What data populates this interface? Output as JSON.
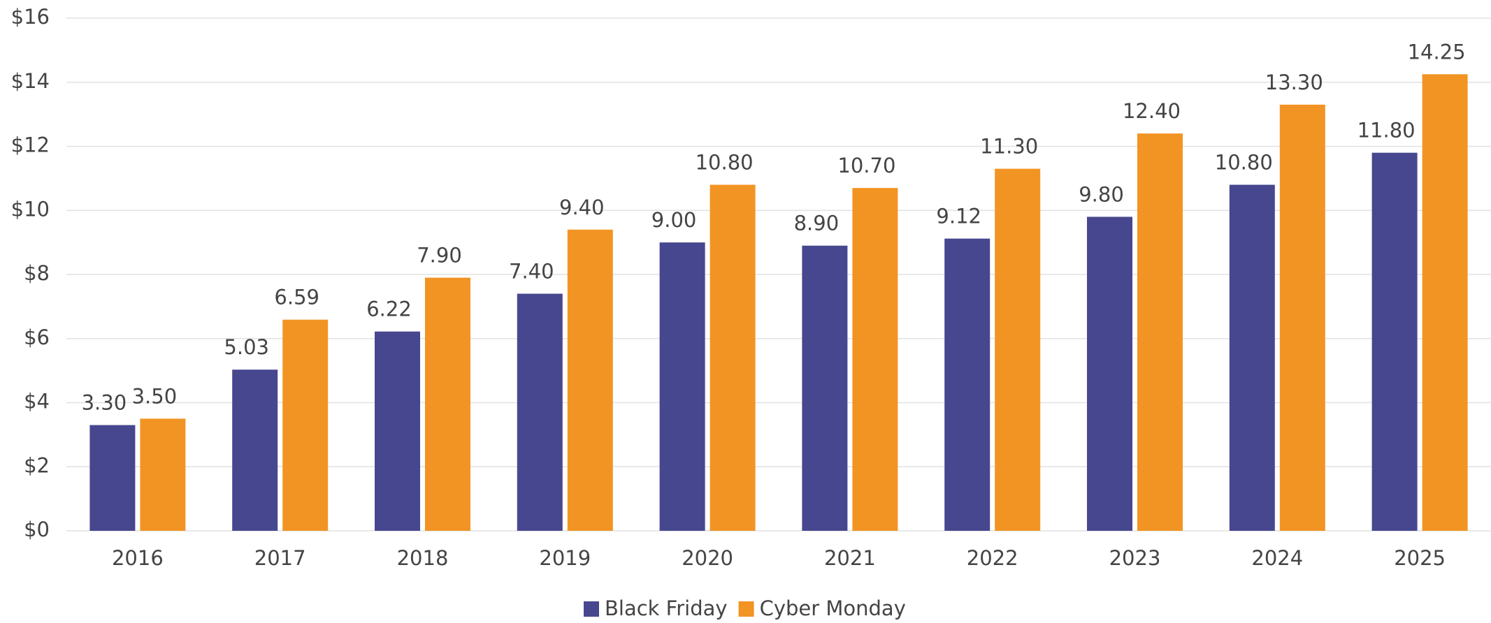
{
  "chart_data": {
    "type": "bar",
    "categories": [
      "2016",
      "2017",
      "2018",
      "2019",
      "2020",
      "2021",
      "2022",
      "2023",
      "2024",
      "2025"
    ],
    "series": [
      {
        "name": "Black Friday",
        "color": "#47478f",
        "values": [
          3.3,
          5.03,
          6.22,
          7.4,
          9.0,
          8.9,
          9.12,
          9.8,
          10.8,
          11.8
        ],
        "value_labels": [
          "3.30",
          "5.03",
          "6.22",
          "7.40",
          "9.00",
          "8.90",
          "9.12",
          "9.80",
          "10.80",
          "11.80"
        ]
      },
      {
        "name": "Cyber Monday",
        "color": "#f29423",
        "values": [
          3.5,
          6.59,
          7.9,
          9.4,
          10.8,
          10.7,
          11.3,
          12.4,
          13.3,
          14.25
        ],
        "value_labels": [
          "3.50",
          "6.59",
          "7.90",
          "9.40",
          "10.80",
          "10.70",
          "11.30",
          "12.40",
          "13.30",
          "14.25"
        ]
      }
    ],
    "ylim": [
      0,
      16
    ],
    "yticks": [
      {
        "value": 0,
        "label": "$0"
      },
      {
        "value": 2,
        "label": "$2"
      },
      {
        "value": 4,
        "label": "$4"
      },
      {
        "value": 6,
        "label": "$6"
      },
      {
        "value": 8,
        "label": "$8"
      },
      {
        "value": 10,
        "label": "$10"
      },
      {
        "value": 12,
        "label": "$12"
      },
      {
        "value": 14,
        "label": "$14"
      },
      {
        "value": 16,
        "label": "$16"
      }
    ],
    "grid": true,
    "legend": "bottom"
  }
}
